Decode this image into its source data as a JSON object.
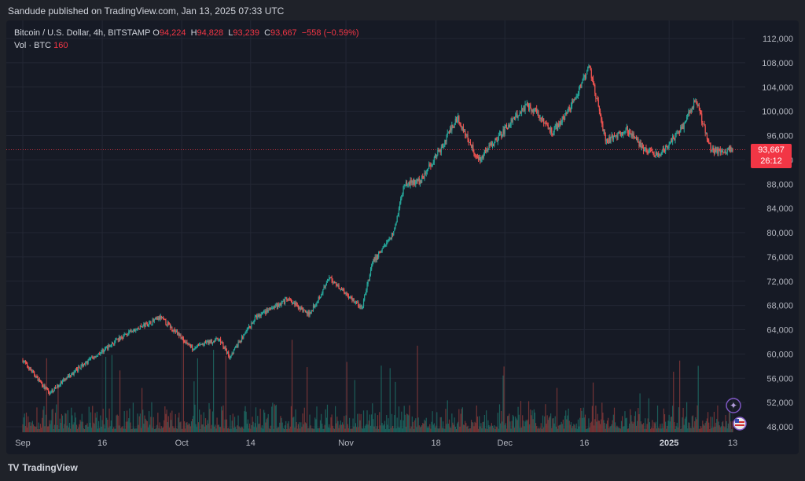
{
  "header": {
    "published": "Sandude published on TradingView.com, Jan 13, 2025 07:33 UTC"
  },
  "legend": {
    "symbol": "Bitcoin / U.S. Dollar, 4h, BITSTAMP",
    "o_label": "O",
    "o_value": "94,224",
    "h_label": "H",
    "h_value": "94,828",
    "l_label": "L",
    "l_value": "93,239",
    "c_label": "C",
    "c_value": "93,667",
    "change": "−558 (−0.59%)",
    "vol_label": "Vol · BTC",
    "vol_value": "160"
  },
  "price_tag": {
    "price": "93,667",
    "countdown": "26:12"
  },
  "footer": {
    "logo": "TV",
    "brand": "TradingView"
  },
  "colors": {
    "up": "#26a69a",
    "down": "#ef5350",
    "up_volume": "#1e6e66",
    "down_volume": "#8a3a3a",
    "price_line": "#f23645",
    "grid": "#232734"
  },
  "chart_data": {
    "type": "candlestick",
    "timeframe": "4h",
    "ylim": [
      46000,
      114000
    ],
    "y_ticks": [
      "112,000",
      "108,000",
      "104,000",
      "100,000",
      "96,000",
      "92,000",
      "88,000",
      "84,000",
      "80,000",
      "76,000",
      "72,000",
      "68,000",
      "64,000",
      "60,000",
      "56,000",
      "52,000",
      "48,000"
    ],
    "y_tick_values": [
      112000,
      108000,
      104000,
      100000,
      96000,
      92000,
      88000,
      84000,
      80000,
      76000,
      72000,
      68000,
      64000,
      60000,
      56000,
      52000,
      48000
    ],
    "x_ticks": [
      {
        "label": "Sep",
        "bold": false
      },
      {
        "label": "16",
        "bold": false
      },
      {
        "label": "Oct",
        "bold": false
      },
      {
        "label": "14",
        "bold": false
      },
      {
        "label": "Nov",
        "bold": false
      },
      {
        "label": "18",
        "bold": false
      },
      {
        "label": "Dec",
        "bold": false
      },
      {
        "label": "16",
        "bold": false
      },
      {
        "label": "2025",
        "bold": true
      },
      {
        "label": "13",
        "bold": false
      }
    ],
    "x_tick_dates": [
      "2024-09-01",
      "2024-09-16",
      "2024-10-01",
      "2024-10-14",
      "2024-11-01",
      "2024-11-18",
      "2024-12-01",
      "2024-12-16",
      "2025-01-01",
      "2025-01-13"
    ],
    "last_price": 93667,
    "close_path_approx": [
      {
        "date": "2024-09-01",
        "close": 59000
      },
      {
        "date": "2024-09-06",
        "close": 53500
      },
      {
        "date": "2024-09-12",
        "close": 58000
      },
      {
        "date": "2024-09-20",
        "close": 63000
      },
      {
        "date": "2024-09-27",
        "close": 66000
      },
      {
        "date": "2024-10-03",
        "close": 61000
      },
      {
        "date": "2024-10-08",
        "close": 62500
      },
      {
        "date": "2024-10-10",
        "close": 59500
      },
      {
        "date": "2024-10-15",
        "close": 66000
      },
      {
        "date": "2024-10-21",
        "close": 69000
      },
      {
        "date": "2024-10-25",
        "close": 66500
      },
      {
        "date": "2024-10-29",
        "close": 72500
      },
      {
        "date": "2024-11-04",
        "close": 67500
      },
      {
        "date": "2024-11-06",
        "close": 75000
      },
      {
        "date": "2024-11-10",
        "close": 80000
      },
      {
        "date": "2024-11-12",
        "close": 88000
      },
      {
        "date": "2024-11-15",
        "close": 88500
      },
      {
        "date": "2024-11-19",
        "close": 94000
      },
      {
        "date": "2024-11-22",
        "close": 99000
      },
      {
        "date": "2024-11-26",
        "close": 92000
      },
      {
        "date": "2024-12-01",
        "close": 97000
      },
      {
        "date": "2024-12-05",
        "close": 101000
      },
      {
        "date": "2024-12-07",
        "close": 100000
      },
      {
        "date": "2024-12-10",
        "close": 96500
      },
      {
        "date": "2024-12-14",
        "close": 101500
      },
      {
        "date": "2024-12-17",
        "close": 107500
      },
      {
        "date": "2024-12-20",
        "close": 95000
      },
      {
        "date": "2024-12-24",
        "close": 97000
      },
      {
        "date": "2024-12-27",
        "close": 94000
      },
      {
        "date": "2024-12-30",
        "close": 92500
      },
      {
        "date": "2025-01-04",
        "close": 98000
      },
      {
        "date": "2025-01-06",
        "close": 102000
      },
      {
        "date": "2025-01-09",
        "close": 93500
      },
      {
        "date": "2025-01-13",
        "close": 93667
      }
    ]
  }
}
